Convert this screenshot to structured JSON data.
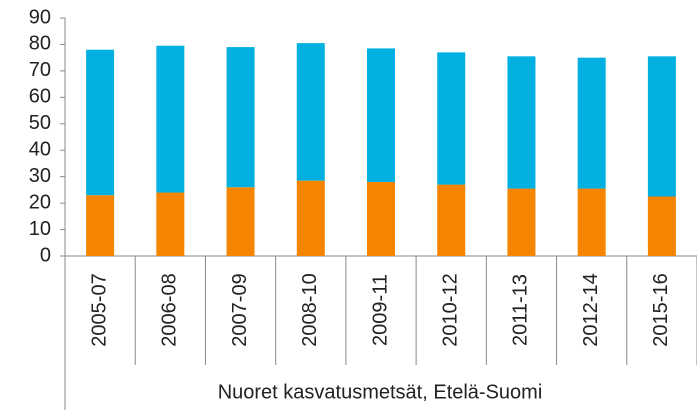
{
  "chart_data": {
    "type": "stacked_bar",
    "categories": [
      "2005-07",
      "2006-08",
      "2007-09",
      "2008-10",
      "2009-11",
      "2010-12",
      "2011-13",
      "2012-14",
      "2015-16"
    ],
    "group_label": "Nuoret kasvatusmetsät, Etelä-Suomi",
    "series": [
      {
        "color": "#f58400",
        "values": [
          23,
          24,
          26,
          28.5,
          28,
          27,
          25.5,
          25.5,
          22.5
        ]
      },
      {
        "color": "#00b0e0",
        "values": [
          55,
          55.5,
          53,
          52,
          50.5,
          50,
          50,
          49.5,
          53
        ]
      }
    ],
    "ylim": [
      0,
      90
    ],
    "yticks": [
      0,
      10,
      20,
      30,
      40,
      50,
      60,
      70,
      80,
      90
    ],
    "grid": false
  }
}
